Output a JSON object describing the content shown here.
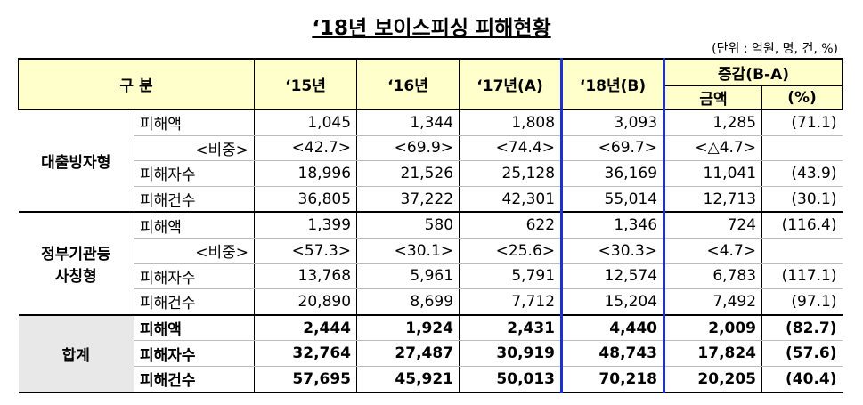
{
  "title": "‘18년 보이스피싱 피해현황",
  "unit": "(단위 : 억원, 명, 건, %)",
  "header": {
    "group": "구 분",
    "years": [
      "‘15년",
      "‘16년",
      "‘17년(A)",
      "‘18년(B)"
    ],
    "change": "증감(B-A)",
    "change_sub": [
      "금액",
      "(%)"
    ]
  },
  "sections": [
    {
      "name": "대출빙자형",
      "rows": [
        {
          "label": "피해액",
          "values": [
            "1,045",
            "1,344",
            "1,808",
            "3,093",
            "1,285",
            "(71.1)"
          ]
        },
        {
          "label": "<비중>",
          "values": [
            "<42.7>",
            "<69.9>",
            "<74.4>",
            "<69.7>",
            "<△4.7>"
          ]
        },
        {
          "label": "피해자수",
          "values": [
            "18,996",
            "21,526",
            "25,128",
            "36,169",
            "11,041",
            "(43.9)"
          ]
        },
        {
          "label": "피해건수",
          "values": [
            "36,805",
            "37,222",
            "42,301",
            "55,014",
            "12,713",
            "(30.1)"
          ]
        }
      ]
    },
    {
      "name": "정부기관등\n사칭형",
      "rows": [
        {
          "label": "피해액",
          "values": [
            "1,399",
            "580",
            "622",
            "1,346",
            "724",
            "(116.4)"
          ]
        },
        {
          "label": "<비중>",
          "values": [
            "<57.3>",
            "<30.1>",
            "<25.6>",
            "<30.3>",
            "<4.7>"
          ]
        },
        {
          "label": "피해자수",
          "values": [
            "13,768",
            "5,961",
            "5,791",
            "12,574",
            "6,783",
            "(117.1)"
          ]
        },
        {
          "label": "피해건수",
          "values": [
            "20,890",
            "8,699",
            "7,712",
            "15,204",
            "7,492",
            "(97.1)"
          ]
        }
      ]
    },
    {
      "name": "합계",
      "rows": [
        {
          "label": "피해액",
          "values": [
            "2,444",
            "1,924",
            "2,431",
            "4,440",
            "2,009",
            "(82.7)"
          ]
        },
        {
          "label": "피해자수",
          "values": [
            "32,764",
            "27,487",
            "30,919",
            "48,743",
            "17,824",
            "(57.6)"
          ]
        },
        {
          "label": "피해건수",
          "values": [
            "57,695",
            "45,921",
            "50,013",
            "70,218",
            "20,205",
            "(40.4)"
          ]
        }
      ]
    }
  ]
}
